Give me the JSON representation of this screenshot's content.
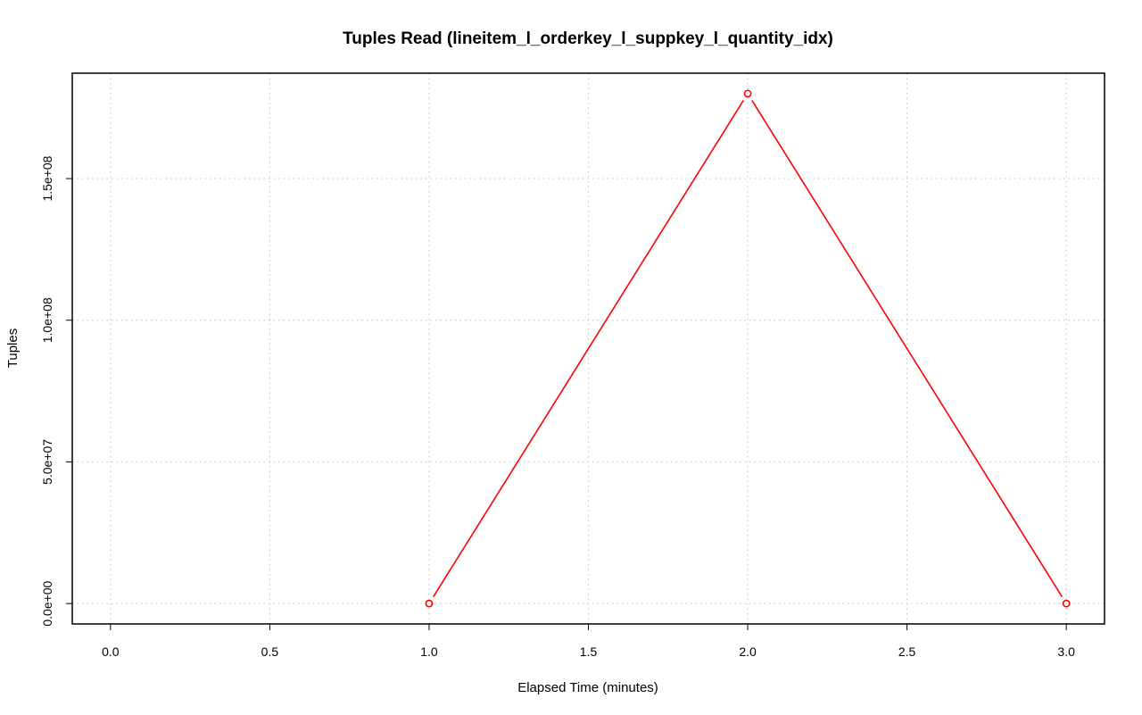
{
  "chart_data": {
    "type": "line",
    "title": "Tuples Read (lineitem_l_orderkey_l_suppkey_l_quantity_idx)",
    "xlabel": "Elapsed Time (minutes)",
    "ylabel": "Tuples",
    "x": [
      1,
      2,
      3
    ],
    "series": [
      {
        "name": "Tuples Read",
        "values": [
          0,
          180000000,
          0
        ],
        "color": "#ff0000"
      }
    ],
    "xlim": [
      -0.12,
      3.12
    ],
    "ylim": [
      -7200000,
      187200000
    ],
    "x_ticks": [
      0,
      0.5,
      1,
      1.5,
      2,
      2.5,
      3
    ],
    "x_tick_labels": [
      "0.0",
      "0.5",
      "1.0",
      "1.5",
      "2.0",
      "2.5",
      "3.0"
    ],
    "y_ticks": [
      0,
      50000000,
      100000000,
      150000000
    ],
    "y_tick_labels": [
      "0.0e+00",
      "5.0e+07",
      "1.0e+08",
      "1.5e+08"
    ],
    "grid": true,
    "markers": "open-circle"
  }
}
